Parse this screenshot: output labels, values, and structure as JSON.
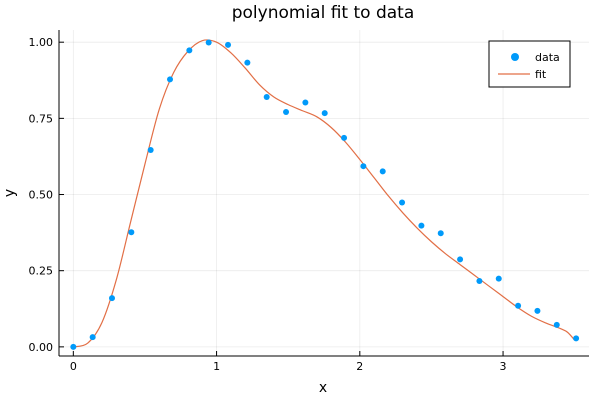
{
  "chart_data": {
    "type": "scatter",
    "title": "polynomial fit to data",
    "xlabel": "x",
    "ylabel": "y",
    "xlim": [
      -0.1,
      3.6
    ],
    "ylim": [
      -0.03,
      1.04
    ],
    "x_ticks": [
      0,
      1,
      2,
      3
    ],
    "x_tick_labels": [
      "0",
      "1",
      "2",
      "3"
    ],
    "y_ticks": [
      0,
      0.25,
      0.5,
      0.75,
      1.0
    ],
    "y_tick_labels": [
      "0.00",
      "0.25",
      "0.50",
      "0.75",
      "1.00"
    ],
    "grid": true,
    "legend_position": "top-right",
    "series": [
      {
        "name": "data",
        "kind": "scatter",
        "color": "#009AFA",
        "x": [
          0.0,
          0.135,
          0.27,
          0.405,
          0.54,
          0.675,
          0.81,
          0.945,
          1.08,
          1.215,
          1.35,
          1.485,
          1.62,
          1.755,
          1.89,
          2.025,
          2.16,
          2.295,
          2.43,
          2.565,
          2.7,
          2.835,
          2.97,
          3.105,
          3.24,
          3.375,
          3.51
        ],
        "y": [
          0.0,
          0.032,
          0.16,
          0.376,
          0.646,
          0.878,
          0.973,
          0.999,
          0.991,
          0.933,
          0.82,
          0.771,
          0.802,
          0.767,
          0.686,
          0.593,
          0.576,
          0.474,
          0.398,
          0.373,
          0.287,
          0.216,
          0.224,
          0.135,
          0.118,
          0.072,
          0.028
        ]
      },
      {
        "name": "fit",
        "kind": "line",
        "color": "#E26F46",
        "x": [
          0.0,
          0.1,
          0.2,
          0.3,
          0.4,
          0.5,
          0.6,
          0.7,
          0.8,
          0.9,
          1.0,
          1.1,
          1.2,
          1.3,
          1.4,
          1.5,
          1.6,
          1.7,
          1.8,
          1.9,
          2.0,
          2.1,
          2.2,
          2.3,
          2.4,
          2.5,
          2.6,
          2.7,
          2.8,
          2.9,
          3.0,
          3.1,
          3.2,
          3.3,
          3.4,
          3.45,
          3.5
        ],
        "y": [
          0.0,
          0.012,
          0.08,
          0.22,
          0.41,
          0.6,
          0.78,
          0.9,
          0.97,
          1.005,
          1.0,
          0.965,
          0.915,
          0.86,
          0.82,
          0.795,
          0.775,
          0.755,
          0.72,
          0.672,
          0.615,
          0.555,
          0.495,
          0.44,
          0.39,
          0.345,
          0.305,
          0.27,
          0.235,
          0.2,
          0.165,
          0.13,
          0.1,
          0.078,
          0.06,
          0.048,
          0.022
        ]
      }
    ]
  }
}
